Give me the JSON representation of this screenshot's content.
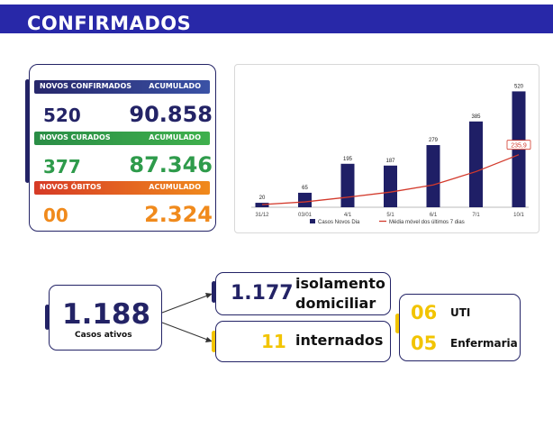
{
  "header": {
    "title": "CONFIRMADOS"
  },
  "stats": {
    "confirmed": {
      "label": "NOVOS CONFIRMADOS",
      "acc_label": "ACUMULADO",
      "new": "520",
      "total": "90.858"
    },
    "recovered": {
      "label": "NOVOS CURADOS",
      "acc_label": "ACUMULADO",
      "new": "377",
      "total": "87.346"
    },
    "deaths": {
      "label": "NOVOS ÓBITOS",
      "acc_label": "ACUMULADO",
      "new": "00",
      "total": "2.324"
    }
  },
  "colors": {
    "navy": "#232366",
    "green": "#2e9b4b",
    "orange": "#f08a1c",
    "yellow": "#f2c400",
    "red": "#d33a2c"
  },
  "chart_data": {
    "type": "bar",
    "categories": [
      "31/12",
      "03/01",
      "4/1",
      "5/1",
      "6/1",
      "7/1",
      "10/1"
    ],
    "series": [
      {
        "name": "Casos Novos Dia",
        "values": [
          20,
          65,
          195,
          187,
          279,
          385,
          520
        ]
      },
      {
        "name": "Média móvel dos últimos 7 dias",
        "type": "line",
        "values": [
          12,
          24,
          45,
          68,
          100,
          160,
          235.9
        ]
      }
    ],
    "data_labels": [
      "20",
      "65",
      "195",
      "187",
      "279",
      "385",
      "520"
    ],
    "highlight_label": "235,9",
    "legend": [
      "Casos Novos Dia",
      "Média móvel dos últimos 7 dias"
    ],
    "ylim": [
      0,
      550
    ]
  },
  "active": {
    "value": "1.188",
    "label": "Casos ativos"
  },
  "isolation": {
    "value": "1.177",
    "label_line1": "isolamento",
    "label_line2": "domiciliar"
  },
  "hospitalized": {
    "value": "11",
    "label": "internados"
  },
  "icu": {
    "value": "06",
    "label": "UTI"
  },
  "ward": {
    "value": "05",
    "label": "Enfermaria"
  }
}
